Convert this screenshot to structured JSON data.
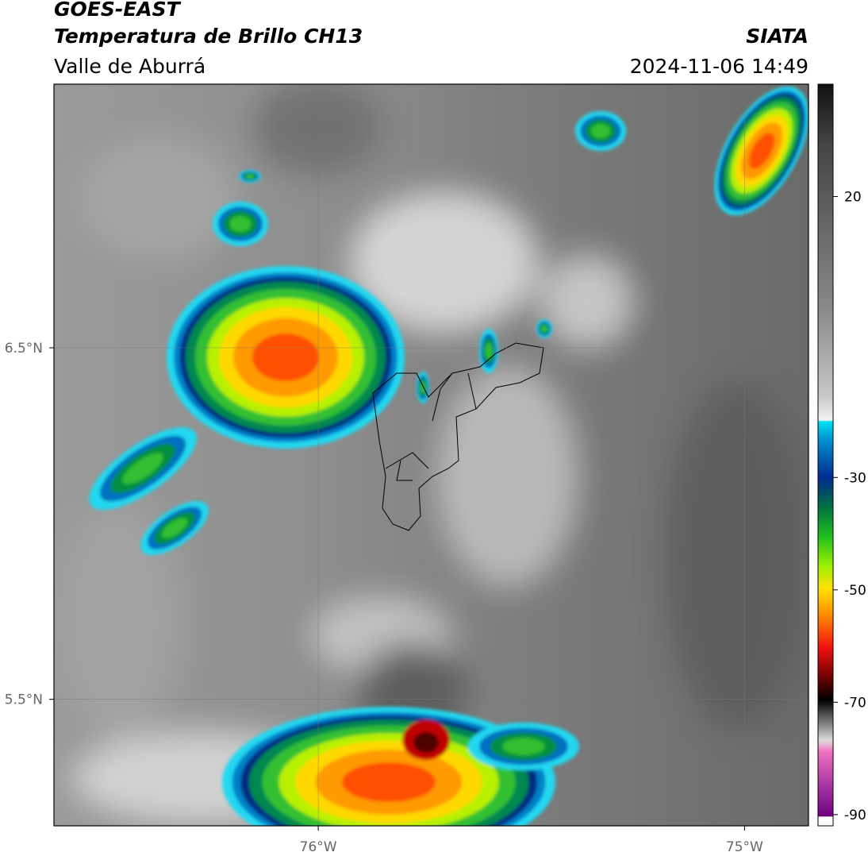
{
  "header": {
    "title": "GOES-EAST",
    "subtitle": "Temperatura de Brillo CH13",
    "region": "Valle de Aburrá",
    "source": "SIATA",
    "datetime": "2024-11-06 14:49"
  },
  "map": {
    "xlim": [
      -76.62,
      -74.85
    ],
    "ylim": [
      5.14,
      7.25
    ],
    "xticks": [
      {
        "value": -76,
        "label": "76°W"
      },
      {
        "value": -75,
        "label": "75°W"
      }
    ],
    "yticks": [
      {
        "value": 6.5,
        "label": "6.5°N"
      },
      {
        "value": 5.5,
        "label": "5.5°N"
      }
    ],
    "grid": true
  },
  "colorbar": {
    "lim": [
      -92,
      40
    ],
    "ticks": [
      20,
      -30,
      -50,
      -70,
      -90
    ]
  }
}
